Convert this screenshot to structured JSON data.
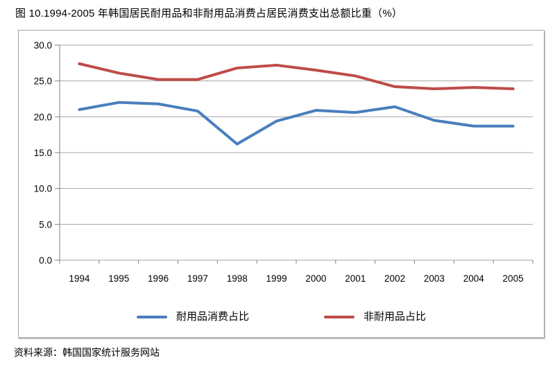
{
  "chart_data": {
    "type": "line",
    "title": "图 10.1994-2005 年韩国居民耐用品和非耐用品消费占居民消费支出总额比重（%）",
    "categories": [
      "1994",
      "1995",
      "1996",
      "1997",
      "1998",
      "1999",
      "2000",
      "2001",
      "2002",
      "2003",
      "2004",
      "2005"
    ],
    "series": [
      {
        "key": "durable",
        "name": "耐用品消费占比",
        "color": "#4A7EBD",
        "values": [
          21.0,
          22.0,
          21.8,
          20.8,
          16.2,
          19.4,
          20.9,
          20.6,
          21.4,
          19.5,
          18.7,
          18.7
        ]
      },
      {
        "key": "nondurable",
        "name": "非耐用品占比",
        "color": "#BE4B48",
        "values": [
          27.4,
          26.1,
          25.2,
          25.2,
          26.8,
          27.2,
          26.5,
          25.7,
          24.2,
          23.9,
          24.1,
          23.9
        ]
      }
    ],
    "xlabel": "",
    "ylabel": "",
    "ylim": [
      0,
      30
    ],
    "ytick_step": 5,
    "ytick_labels": [
      "0.0",
      "5.0",
      "10.0",
      "15.0",
      "20.0",
      "25.0",
      "30.0"
    ],
    "grid": true,
    "legend_position": "bottom"
  },
  "source_note": "资料来源：韩国国家统计服务网站",
  "colors": {
    "grid": "#a6a6a6",
    "axis": "#7f7f7f",
    "box_border": "#a3a3a3",
    "text": "#000000"
  }
}
